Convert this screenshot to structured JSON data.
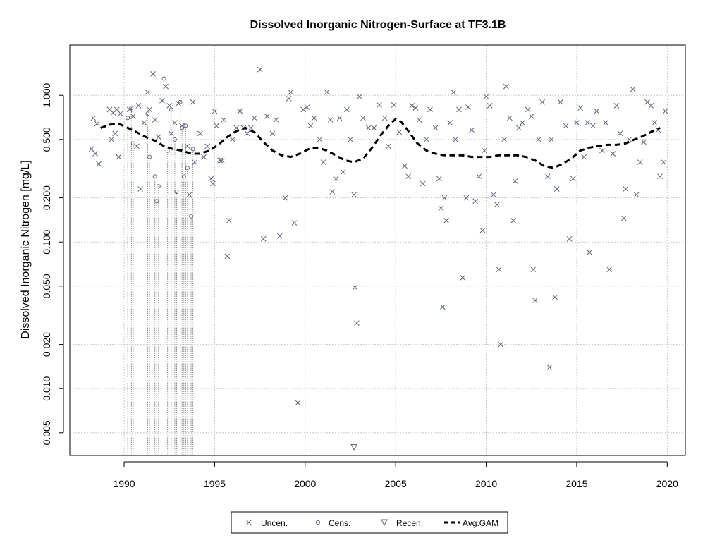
{
  "chart_data": {
    "type": "scatter",
    "title": "Dissolved Inorganic Nitrogen-Surface at TF3.1B",
    "xlabel": "",
    "ylabel": "Dissolved Inorganic Nitrogen [mg/L]",
    "xlim": [
      1987.0,
      2021.0
    ],
    "ylim": [
      0.0035,
      2.2
    ],
    "y_scale": "log",
    "x_ticks": [
      1990,
      1995,
      2000,
      2005,
      2010,
      2015,
      2020
    ],
    "x_tick_labels": [
      "1990",
      "1995",
      "2000",
      "2005",
      "2010",
      "2015",
      "2020"
    ],
    "y_ticks": [
      0.005,
      0.01,
      0.02,
      0.05,
      0.1,
      0.2,
      0.5,
      1.0
    ],
    "y_tick_labels": [
      "0.005",
      "0.010",
      "0.020",
      "0.050",
      "0.100",
      "0.200",
      "0.500",
      "1.000"
    ],
    "grid": true,
    "legend_position": "bottom-center",
    "colors": {
      "points": "#5a6378",
      "gam": "#000000",
      "grid": "#c8c8c8",
      "censored_line": "#8c8c8c"
    },
    "legend": [
      {
        "label": "Uncen.",
        "symbol": "x"
      },
      {
        "label": "Cens.",
        "symbol": "circle"
      },
      {
        "label": "Recen.",
        "symbol": "triangle-down"
      },
      {
        "label": "Avg.GAM",
        "symbol": "dashed-line"
      }
    ],
    "series": [
      {
        "name": "Uncen.",
        "marker": "x",
        "points": [
          [
            1988.2,
            0.43
          ],
          [
            1988.3,
            0.7
          ],
          [
            1988.4,
            0.4
          ],
          [
            1988.5,
            0.64
          ],
          [
            1988.6,
            0.34
          ],
          [
            1989.2,
            0.8
          ],
          [
            1989.3,
            0.5
          ],
          [
            1989.4,
            0.76
          ],
          [
            1989.5,
            0.55
          ],
          [
            1989.6,
            0.8
          ],
          [
            1989.7,
            0.38
          ],
          [
            1989.8,
            0.75
          ],
          [
            1990.3,
            0.8
          ],
          [
            1990.5,
            0.72
          ],
          [
            1990.7,
            0.45
          ],
          [
            1990.8,
            0.85
          ],
          [
            1990.9,
            0.23
          ],
          [
            1991.1,
            0.65
          ],
          [
            1991.3,
            1.05
          ],
          [
            1991.4,
            0.8
          ],
          [
            1991.6,
            1.4
          ],
          [
            1991.7,
            0.68
          ],
          [
            1991.9,
            0.52
          ],
          [
            1992.1,
            0.92
          ],
          [
            1992.3,
            1.15
          ],
          [
            1992.5,
            0.85
          ],
          [
            1992.6,
            0.55
          ],
          [
            1992.8,
            0.65
          ],
          [
            1993.0,
            0.88
          ],
          [
            1993.2,
            0.62
          ],
          [
            1993.5,
            0.45
          ],
          [
            1993.6,
            0.21
          ],
          [
            1993.8,
            0.9
          ],
          [
            1993.9,
            0.35
          ],
          [
            1994.2,
            0.55
          ],
          [
            1994.4,
            0.38
          ],
          [
            1994.6,
            0.45
          ],
          [
            1994.8,
            0.27
          ],
          [
            1994.9,
            0.25
          ],
          [
            1995.0,
            0.78
          ],
          [
            1995.1,
            0.62
          ],
          [
            1995.3,
            0.36
          ],
          [
            1995.4,
            0.36
          ],
          [
            1995.5,
            0.68
          ],
          [
            1995.7,
            0.08
          ],
          [
            1995.8,
            0.14
          ],
          [
            1996.0,
            0.5
          ],
          [
            1996.2,
            0.6
          ],
          [
            1996.4,
            0.78
          ],
          [
            1996.6,
            0.6
          ],
          [
            1996.8,
            0.55
          ],
          [
            1997.0,
            0.6
          ],
          [
            1997.2,
            0.7
          ],
          [
            1997.5,
            1.5
          ],
          [
            1997.7,
            0.105
          ],
          [
            1997.9,
            0.72
          ],
          [
            1998.2,
            0.55
          ],
          [
            1998.4,
            0.68
          ],
          [
            1998.6,
            0.11
          ],
          [
            1998.9,
            0.2
          ],
          [
            1999.1,
            0.95
          ],
          [
            1999.2,
            1.05
          ],
          [
            1999.4,
            0.135
          ],
          [
            1999.6,
            0.008
          ],
          [
            1999.9,
            0.8
          ],
          [
            2000.1,
            0.83
          ],
          [
            2000.3,
            0.62
          ],
          [
            2000.5,
            0.7
          ],
          [
            2000.8,
            0.5
          ],
          [
            2001.0,
            0.35
          ],
          [
            2001.2,
            1.05
          ],
          [
            2001.4,
            0.68
          ],
          [
            2001.5,
            0.22
          ],
          [
            2001.7,
            0.27
          ],
          [
            2001.9,
            0.7
          ],
          [
            2002.1,
            0.3
          ],
          [
            2002.3,
            0.8
          ],
          [
            2002.5,
            0.5
          ],
          [
            2002.7,
            0.21
          ],
          [
            2002.75,
            0.049
          ],
          [
            2002.85,
            0.028
          ],
          [
            2003.0,
            0.98
          ],
          [
            2003.2,
            0.7
          ],
          [
            2003.5,
            0.6
          ],
          [
            2003.8,
            0.6
          ],
          [
            2004.1,
            0.86
          ],
          [
            2004.4,
            0.7
          ],
          [
            2004.6,
            0.45
          ],
          [
            2004.9,
            0.86
          ],
          [
            2005.2,
            0.56
          ],
          [
            2005.5,
            0.33
          ],
          [
            2005.7,
            0.28
          ],
          [
            2005.9,
            0.85
          ],
          [
            2006.1,
            0.82
          ],
          [
            2006.3,
            0.68
          ],
          [
            2006.5,
            0.25
          ],
          [
            2006.7,
            0.5
          ],
          [
            2006.9,
            0.8
          ],
          [
            2007.2,
            0.6
          ],
          [
            2007.4,
            0.27
          ],
          [
            2007.5,
            0.17
          ],
          [
            2007.6,
            0.036
          ],
          [
            2007.7,
            0.2
          ],
          [
            2007.8,
            0.14
          ],
          [
            2008.0,
            0.65
          ],
          [
            2008.2,
            1.05
          ],
          [
            2008.3,
            0.5
          ],
          [
            2008.5,
            0.8
          ],
          [
            2008.7,
            0.057
          ],
          [
            2008.9,
            0.2
          ],
          [
            2009.0,
            0.83
          ],
          [
            2009.2,
            0.58
          ],
          [
            2009.4,
            0.19
          ],
          [
            2009.6,
            0.28
          ],
          [
            2009.8,
            0.12
          ],
          [
            2009.9,
            0.42
          ],
          [
            2010.0,
            0.98
          ],
          [
            2010.2,
            0.85
          ],
          [
            2010.4,
            0.21
          ],
          [
            2010.6,
            0.18
          ],
          [
            2010.7,
            0.065
          ],
          [
            2010.8,
            0.02
          ],
          [
            2011.0,
            0.5
          ],
          [
            2011.1,
            1.15
          ],
          [
            2011.3,
            0.7
          ],
          [
            2011.5,
            0.14
          ],
          [
            2011.6,
            0.26
          ],
          [
            2011.8,
            0.6
          ],
          [
            2012.0,
            0.65
          ],
          [
            2012.3,
            0.8
          ],
          [
            2012.5,
            0.72
          ],
          [
            2012.6,
            0.065
          ],
          [
            2012.7,
            0.04
          ],
          [
            2012.9,
            0.5
          ],
          [
            2013.1,
            0.9
          ],
          [
            2013.4,
            0.28
          ],
          [
            2013.5,
            0.014
          ],
          [
            2013.6,
            0.5
          ],
          [
            2013.8,
            0.042
          ],
          [
            2013.9,
            0.23
          ],
          [
            2014.1,
            0.9
          ],
          [
            2014.4,
            0.62
          ],
          [
            2014.6,
            0.105
          ],
          [
            2014.8,
            0.27
          ],
          [
            2015.0,
            0.65
          ],
          [
            2015.2,
            0.82
          ],
          [
            2015.4,
            0.38
          ],
          [
            2015.6,
            0.65
          ],
          [
            2015.7,
            0.085
          ],
          [
            2015.9,
            0.62
          ],
          [
            2016.1,
            0.78
          ],
          [
            2016.4,
            0.42
          ],
          [
            2016.6,
            0.65
          ],
          [
            2016.8,
            0.065
          ],
          [
            2017.0,
            0.4
          ],
          [
            2017.2,
            0.85
          ],
          [
            2017.4,
            0.55
          ],
          [
            2017.6,
            0.145
          ],
          [
            2017.7,
            0.23
          ],
          [
            2017.9,
            0.5
          ],
          [
            2018.1,
            1.1
          ],
          [
            2018.3,
            0.21
          ],
          [
            2018.5,
            0.35
          ],
          [
            2018.7,
            0.48
          ],
          [
            2018.9,
            0.9
          ],
          [
            2019.1,
            0.85
          ],
          [
            2019.3,
            0.65
          ],
          [
            2019.5,
            0.58
          ],
          [
            2019.6,
            0.28
          ],
          [
            2019.8,
            0.35
          ],
          [
            2019.9,
            0.78
          ]
        ]
      },
      {
        "name": "Cens.",
        "marker": "circle",
        "points": [
          [
            1990.2,
            0.7
          ],
          [
            1990.4,
            0.82
          ],
          [
            1990.5,
            0.47
          ],
          [
            1991.3,
            0.75
          ],
          [
            1991.4,
            0.38
          ],
          [
            1991.7,
            0.28
          ],
          [
            1991.8,
            0.19
          ],
          [
            1991.9,
            0.24
          ],
          [
            1992.2,
            1.3
          ],
          [
            1992.4,
            0.42
          ],
          [
            1992.6,
            0.8
          ],
          [
            1992.8,
            0.5
          ],
          [
            1992.9,
            0.22
          ],
          [
            1993.1,
            0.9
          ],
          [
            1993.2,
            0.6
          ],
          [
            1993.3,
            0.28
          ],
          [
            1993.4,
            0.62
          ],
          [
            1993.5,
            0.32
          ],
          [
            1993.7,
            0.15
          ],
          [
            1993.8,
            0.43
          ]
        ]
      },
      {
        "name": "Recen.",
        "marker": "triangle-down",
        "points": [
          [
            2002.7,
            0.004
          ]
        ]
      },
      {
        "name": "Avg.GAM",
        "marker": "dashed-line",
        "points": [
          [
            1988.7,
            0.6
          ],
          [
            1989.2,
            0.63
          ],
          [
            1989.7,
            0.64
          ],
          [
            1990.2,
            0.6
          ],
          [
            1990.7,
            0.56
          ],
          [
            1991.2,
            0.52
          ],
          [
            1991.7,
            0.49
          ],
          [
            1992.2,
            0.45
          ],
          [
            1992.7,
            0.43
          ],
          [
            1993.2,
            0.42
          ],
          [
            1993.7,
            0.4
          ],
          [
            1994.2,
            0.4
          ],
          [
            1994.7,
            0.42
          ],
          [
            1995.2,
            0.46
          ],
          [
            1995.7,
            0.52
          ],
          [
            1996.2,
            0.57
          ],
          [
            1996.7,
            0.6
          ],
          [
            1997.2,
            0.56
          ],
          [
            1997.7,
            0.48
          ],
          [
            1998.2,
            0.42
          ],
          [
            1998.7,
            0.39
          ],
          [
            1999.2,
            0.38
          ],
          [
            1999.7,
            0.4
          ],
          [
            2000.2,
            0.43
          ],
          [
            2000.7,
            0.44
          ],
          [
            2001.2,
            0.42
          ],
          [
            2001.7,
            0.39
          ],
          [
            2002.2,
            0.36
          ],
          [
            2002.7,
            0.35
          ],
          [
            2003.2,
            0.37
          ],
          [
            2003.7,
            0.44
          ],
          [
            2004.2,
            0.54
          ],
          [
            2004.7,
            0.64
          ],
          [
            2005.0,
            0.69
          ],
          [
            2005.3,
            0.66
          ],
          [
            2005.7,
            0.57
          ],
          [
            2006.2,
            0.47
          ],
          [
            2006.7,
            0.42
          ],
          [
            2007.2,
            0.4
          ],
          [
            2007.7,
            0.39
          ],
          [
            2008.2,
            0.39
          ],
          [
            2008.7,
            0.39
          ],
          [
            2009.2,
            0.38
          ],
          [
            2009.7,
            0.38
          ],
          [
            2010.2,
            0.38
          ],
          [
            2010.7,
            0.39
          ],
          [
            2011.2,
            0.39
          ],
          [
            2011.7,
            0.39
          ],
          [
            2012.2,
            0.38
          ],
          [
            2012.7,
            0.36
          ],
          [
            2013.2,
            0.33
          ],
          [
            2013.7,
            0.32
          ],
          [
            2014.2,
            0.34
          ],
          [
            2014.7,
            0.37
          ],
          [
            2015.2,
            0.42
          ],
          [
            2015.7,
            0.44
          ],
          [
            2016.2,
            0.45
          ],
          [
            2016.7,
            0.46
          ],
          [
            2017.2,
            0.46
          ],
          [
            2017.7,
            0.47
          ],
          [
            2018.2,
            0.5
          ],
          [
            2018.7,
            0.53
          ],
          [
            2019.2,
            0.57
          ],
          [
            2019.6,
            0.6
          ]
        ]
      }
    ]
  }
}
